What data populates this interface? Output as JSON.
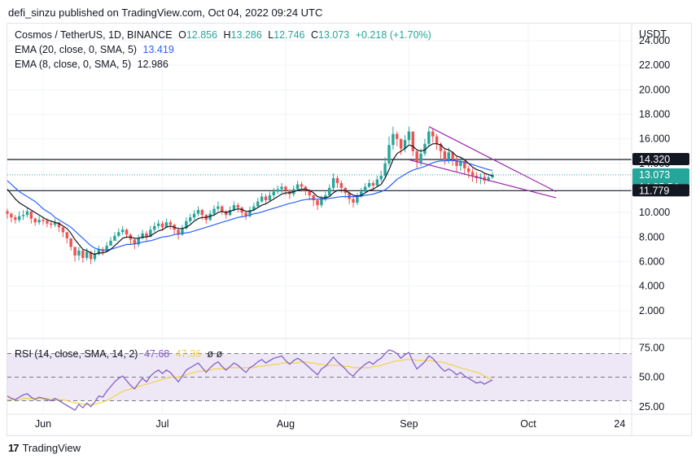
{
  "header": {
    "published_text": "defi_sinzu published on TradingView.com, Oct 04, 2022 09:24 UTC"
  },
  "legend": {
    "symbol": "Cosmos / TetherUS, 1D, BINANCE",
    "o_label": "O",
    "o_value": "12.856",
    "h_label": "H",
    "h_value": "13.286",
    "l_label": "L",
    "l_value": "12.746",
    "c_label": "C",
    "c_value": "13.073",
    "change": "+0.218 (+1.70%)",
    "ema20_label": "EMA (20, close, 0, SMA, 5)",
    "ema20_value": "13.419",
    "ema8_label": "EMA (8, close, 0, SMA, 5)",
    "ema8_value": "12.986"
  },
  "rsi_legend": {
    "label": "RSI (14, close, SMA, 14, 2)",
    "value": "47.68",
    "sma_value": "47.36",
    "extra": "ø ø"
  },
  "footer": {
    "logo_text": "17",
    "brand": "TradingView"
  },
  "colors": {
    "up": "#26a69a",
    "down": "#ef5350",
    "ema20": "#2962ff",
    "ema8": "#131722",
    "rsi": "#7e57c2",
    "rsi_sma": "#f5d249",
    "wedge": "#9c27b0",
    "rsi_band": "#ede7f6"
  },
  "chart_data": {
    "type": "candlestick",
    "symbol": "Cosmos / TetherUS",
    "currency": "USDT",
    "interval": "1D",
    "ylim": [
      0,
      24
    ],
    "y_ticks": [
      "2.000",
      "4.000",
      "6.000",
      "8.000",
      "10.000",
      "12.000",
      "14.000",
      "16.000",
      "18.000",
      "20.000",
      "22.000",
      "24.000"
    ],
    "x_tick_labels": [
      "Jun",
      "Jul",
      "Aug",
      "Sep",
      "Oct",
      "24"
    ],
    "x_tick_dates": [
      "2022-06-01",
      "2022-07-01",
      "2022-08-01",
      "2022-09-01",
      "2022-10-01",
      "2022-10-24"
    ],
    "x_range": [
      "2022-05-23",
      "2022-10-27"
    ],
    "start_date": "2022-05-23",
    "close": [
      9.9,
      9.6,
      9.4,
      9.7,
      9.8,
      10.1,
      9.5,
      9.2,
      9.4,
      9.3,
      9.1,
      9.0,
      9.2,
      8.8,
      8.4,
      7.9,
      7.2,
      6.5,
      6.9,
      6.3,
      6.8,
      6.2,
      6.6,
      7.0,
      6.8,
      7.3,
      7.7,
      8.1,
      8.4,
      8.6,
      8.2,
      7.8,
      7.4,
      7.9,
      8.3,
      8.0,
      8.6,
      8.9,
      9.1,
      8.8,
      9.2,
      9.0,
      8.6,
      8.2,
      8.7,
      9.3,
      9.6,
      9.9,
      10.2,
      9.8,
      9.4,
      9.9,
      10.3,
      10.5,
      10.1,
      9.8,
      10.2,
      10.6,
      10.4,
      10.0,
      9.7,
      10.2,
      10.5,
      10.9,
      11.3,
      11.0,
      11.4,
      11.7,
      11.9,
      12.1,
      11.8,
      11.5,
      11.9,
      12.3,
      12.1,
      11.8,
      11.4,
      11.0,
      10.6,
      11.1,
      11.4,
      12.0,
      12.8,
      12.4,
      12.0,
      11.6,
      11.1,
      10.8,
      11.3,
      11.7,
      12.1,
      12.4,
      12.2,
      12.7,
      13.0,
      14.0,
      15.5,
      16.4,
      16.0,
      15.2,
      15.9,
      16.6,
      15.0,
      14.1,
      14.8,
      15.6,
      16.6,
      16.2,
      15.6,
      15.0,
      14.3,
      14.9,
      14.4,
      13.8,
      14.2,
      13.6,
      13.3,
      13.0,
      12.8,
      12.9,
      12.6,
      12.856,
      13.073
    ],
    "high": [
      10.3,
      10.0,
      9.8,
      10.1,
      10.2,
      10.4,
      9.9,
      9.6,
      9.7,
      9.6,
      9.5,
      9.3,
      9.5,
      9.1,
      8.8,
      8.3,
      7.9,
      7.0,
      7.2,
      7.0,
      7.1,
      6.9,
      7.0,
      7.3,
      7.2,
      7.6,
      8.0,
      8.4,
      8.7,
      8.9,
      8.7,
      8.3,
      7.9,
      8.2,
      8.6,
      8.5,
      8.9,
      9.2,
      9.4,
      9.3,
      9.5,
      9.4,
      9.1,
      8.7,
      9.0,
      9.6,
      9.9,
      10.2,
      10.5,
      10.3,
      9.9,
      10.2,
      10.6,
      10.9,
      10.6,
      10.2,
      10.5,
      10.9,
      10.8,
      10.5,
      10.1,
      10.5,
      10.8,
      11.2,
      11.6,
      11.5,
      11.7,
      12.0,
      12.2,
      12.4,
      12.2,
      11.9,
      12.2,
      12.6,
      12.5,
      12.2,
      11.9,
      11.5,
      11.1,
      11.4,
      11.7,
      12.3,
      13.2,
      13.0,
      12.6,
      12.1,
      11.7,
      11.3,
      11.6,
      12.0,
      12.4,
      12.7,
      12.6,
      13.0,
      13.4,
      14.5,
      16.2,
      17.0,
      16.6,
      16.0,
      16.3,
      17.0,
      16.5,
      15.0,
      15.2,
      16.0,
      16.9,
      16.8,
      16.4,
      15.7,
      15.2,
      15.3,
      15.0,
      14.6,
      14.5,
      14.3,
      13.8,
      13.6,
      13.3,
      13.2,
      13.2,
      13.1,
      13.286
    ],
    "low": [
      9.5,
      9.2,
      9.1,
      9.2,
      9.4,
      9.6,
      9.1,
      8.9,
      9.0,
      9.0,
      8.8,
      8.7,
      8.8,
      8.4,
      8.0,
      7.5,
      6.9,
      6.0,
      6.1,
      5.9,
      6.1,
      5.8,
      6.0,
      6.5,
      6.5,
      6.9,
      7.3,
      7.7,
      8.0,
      8.2,
      7.9,
      7.4,
      7.0,
      7.2,
      7.8,
      7.7,
      8.0,
      8.4,
      8.7,
      8.5,
      8.8,
      8.6,
      8.2,
      7.8,
      8.1,
      8.6,
      9.1,
      9.4,
      9.7,
      9.4,
      9.1,
      9.3,
      9.7,
      10.1,
      9.8,
      9.5,
      9.7,
      10.1,
      10.0,
      9.7,
      9.4,
      9.6,
      10.1,
      10.4,
      10.8,
      10.7,
      10.9,
      11.2,
      11.5,
      11.6,
      11.4,
      11.1,
      11.3,
      11.8,
      11.7,
      11.4,
      11.0,
      10.5,
      10.2,
      10.4,
      10.9,
      11.3,
      11.8,
      12.0,
      11.6,
      11.2,
      10.7,
      10.4,
      10.6,
      11.2,
      11.6,
      12.0,
      11.8,
      12.1,
      12.5,
      12.8,
      13.8,
      15.1,
      15.4,
      14.7,
      14.9,
      15.6,
      14.6,
      13.6,
      13.8,
      14.6,
      15.4,
      15.7,
      15.1,
      14.4,
      13.9,
      14.0,
      13.8,
      13.3,
      13.4,
      13.1,
      12.8,
      12.5,
      12.4,
      12.3,
      12.3,
      12.5,
      12.746
    ],
    "ema20": [
      12.6,
      12.3,
      12.0,
      11.7,
      11.5,
      11.3,
      11.1,
      10.9,
      10.6,
      10.3,
      10.1,
      9.9,
      9.6,
      9.4,
      9.2,
      9.0,
      8.8,
      8.5,
      8.2,
      7.9,
      7.6,
      7.3,
      7.1,
      7.0,
      6.95,
      6.95,
      7.0,
      7.1,
      7.2,
      7.3,
      7.4,
      7.4,
      7.45,
      7.5,
      7.6,
      7.65,
      7.7,
      7.8,
      7.9,
      8.0,
      8.05,
      8.1,
      8.2,
      8.25,
      8.3,
      8.35,
      8.4,
      8.5,
      8.6,
      8.7,
      8.8,
      8.9,
      9.0,
      9.1,
      9.2,
      9.3,
      9.4,
      9.5,
      9.6,
      9.65,
      9.7,
      9.8,
      9.9,
      9.95,
      10.05,
      10.15,
      10.25,
      10.35,
      10.45,
      10.55,
      10.65,
      10.75,
      10.8,
      10.9,
      11.0,
      11.05,
      11.1,
      11.1,
      11.1,
      11.1,
      11.1,
      11.15,
      11.2,
      11.25,
      11.3,
      11.3,
      11.3,
      11.3,
      11.3,
      11.35,
      11.4,
      11.45,
      11.5,
      11.6,
      11.7,
      11.85,
      12.1,
      12.4,
      12.7,
      12.9,
      13.1,
      13.3,
      13.45,
      13.55,
      13.65,
      13.75,
      13.9,
      14.05,
      14.15,
      14.2,
      14.2,
      14.25,
      14.25,
      14.2,
      14.15,
      14.1,
      14.0,
      13.9,
      13.8,
      13.7,
      13.6,
      13.5,
      13.419
    ],
    "ema8": [
      11.9,
      11.5,
      11.1,
      10.8,
      10.6,
      10.4,
      10.2,
      10.0,
      9.8,
      9.6,
      9.4,
      9.3,
      9.2,
      9.1,
      8.9,
      8.7,
      8.3,
      7.8,
      7.4,
      7.0,
      6.9,
      6.7,
      6.6,
      6.7,
      6.7,
      6.8,
      7.0,
      7.3,
      7.6,
      7.9,
      8.0,
      8.0,
      7.9,
      7.9,
      8.0,
      8.0,
      8.1,
      8.3,
      8.5,
      8.6,
      8.8,
      8.9,
      8.8,
      8.7,
      8.7,
      8.8,
      9.0,
      9.3,
      9.5,
      9.6,
      9.6,
      9.7,
      9.8,
      10.0,
      10.1,
      10.0,
      10.1,
      10.2,
      10.3,
      10.25,
      10.1,
      10.1,
      10.2,
      10.4,
      10.6,
      10.7,
      10.9,
      11.1,
      11.3,
      11.5,
      11.6,
      11.6,
      11.7,
      11.8,
      11.9,
      11.9,
      11.8,
      11.6,
      11.3,
      11.2,
      11.2,
      11.3,
      11.6,
      11.8,
      11.8,
      11.8,
      11.6,
      11.4,
      11.35,
      11.4,
      11.6,
      11.8,
      11.9,
      12.1,
      12.3,
      12.8,
      13.5,
      14.3,
      14.8,
      15.0,
      15.2,
      15.5,
      15.4,
      15.1,
      15.0,
      15.1,
      15.4,
      15.6,
      15.6,
      15.5,
      15.2,
      15.1,
      14.9,
      14.6,
      14.5,
      14.3,
      14.0,
      13.7,
      13.5,
      13.4,
      13.2,
      13.1,
      12.986
    ],
    "rsi": [
      34,
      32,
      31,
      33,
      35,
      36,
      33,
      31,
      33,
      32,
      31,
      30,
      32,
      30,
      28,
      26,
      24,
      22,
      27,
      24,
      28,
      25,
      29,
      34,
      33,
      38,
      42,
      46,
      49,
      51,
      47,
      43,
      40,
      45,
      49,
      46,
      51,
      54,
      56,
      53,
      56,
      54,
      50,
      46,
      51,
      56,
      58,
      60,
      62,
      58,
      54,
      58,
      61,
      63,
      59,
      56,
      59,
      62,
      60,
      57,
      54,
      58,
      60,
      63,
      65,
      62,
      64,
      66,
      67,
      68,
      64,
      61,
      64,
      66,
      64,
      61,
      58,
      55,
      52,
      57,
      59,
      63,
      67,
      63,
      60,
      57,
      53,
      51,
      55,
      58,
      61,
      63,
      61,
      64,
      66,
      70,
      73,
      72,
      70,
      66,
      69,
      71,
      63,
      57,
      60,
      63,
      68,
      66,
      62,
      58,
      55,
      57,
      55,
      52,
      54,
      51,
      49,
      47,
      45,
      46,
      44,
      46,
      47.68
    ],
    "rsi_sma": [
      31,
      31,
      31,
      31,
      32,
      32,
      32,
      32,
      32,
      32,
      32,
      31,
      31,
      31,
      31,
      30,
      29,
      28,
      28,
      27,
      27,
      27,
      27,
      28,
      29,
      30,
      32,
      34,
      36,
      38,
      39,
      40,
      41,
      42,
      43,
      44,
      45,
      46,
      47,
      48,
      49,
      50,
      50,
      50,
      51,
      52,
      53,
      54,
      55,
      55,
      56,
      56,
      57,
      57,
      57,
      57,
      58,
      58,
      58,
      58,
      58,
      58,
      58,
      59,
      59,
      60,
      60,
      61,
      61,
      62,
      62,
      62,
      62,
      62,
      63,
      63,
      62,
      62,
      61,
      61,
      60,
      60,
      60,
      60,
      60,
      59,
      59,
      58,
      58,
      58,
      58,
      58,
      59,
      59,
      60,
      61,
      62,
      63,
      64,
      64,
      65,
      65,
      65,
      64,
      64,
      64,
      64,
      64,
      63,
      63,
      62,
      61,
      60,
      59,
      58,
      57,
      56,
      55,
      54,
      53,
      51,
      49,
      47.36
    ],
    "rsi_levels": [
      70,
      50,
      30
    ],
    "rsi_ticks": [
      "75.00",
      "50.00",
      "25.00"
    ],
    "resistance": "14.320",
    "support": "11.779",
    "last_price": "13.073",
    "countdown": "14:35:54",
    "wedge_lines": [
      {
        "from": [
          "2022-09-06",
          17.0
        ],
        "to": [
          "2022-10-08",
          11.7
        ]
      },
      {
        "from": [
          "2022-09-01",
          14.3
        ],
        "to": [
          "2022-10-08",
          11.2
        ]
      }
    ]
  }
}
